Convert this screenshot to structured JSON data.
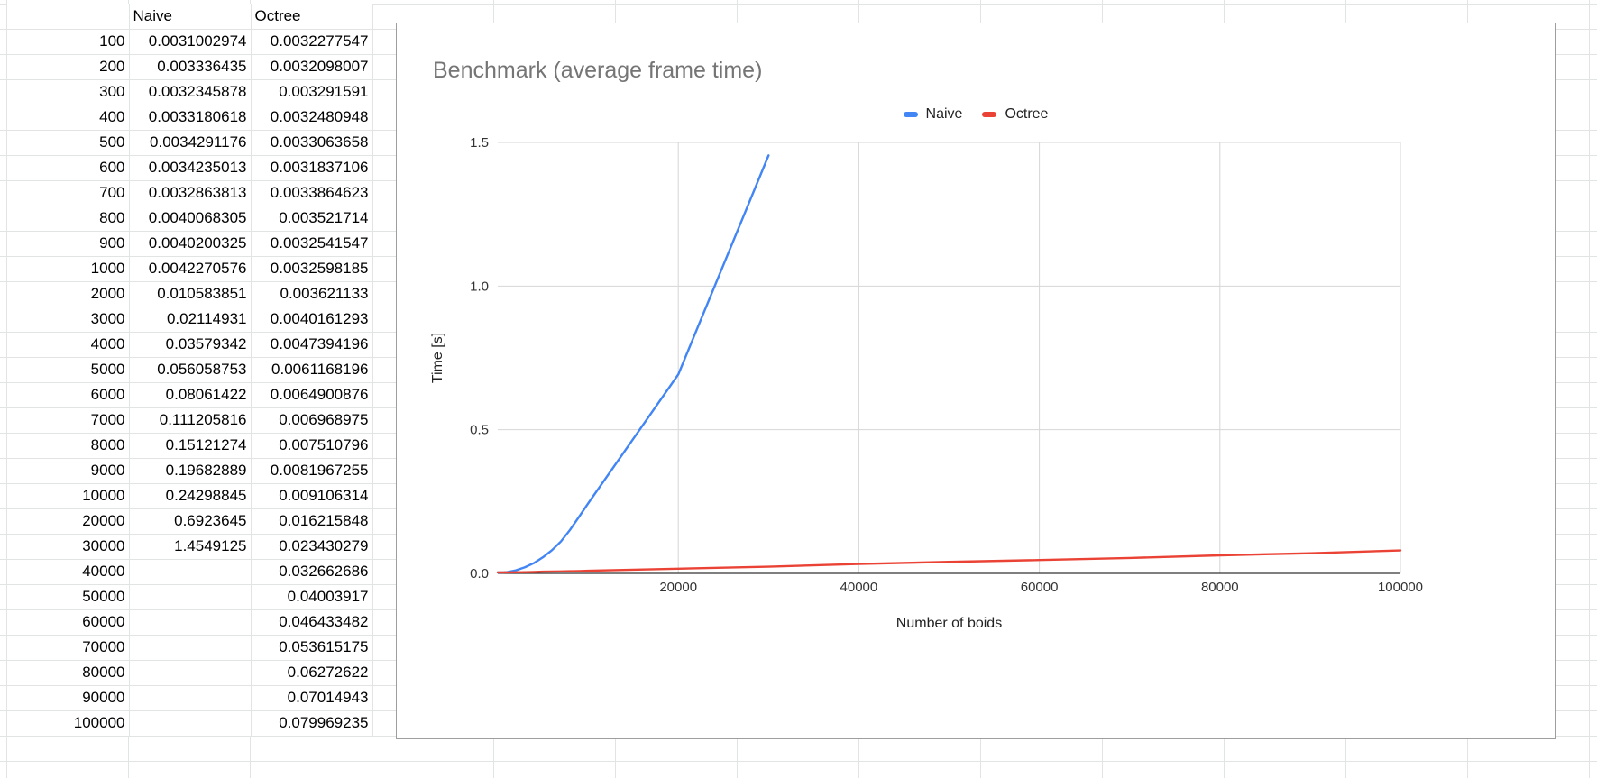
{
  "sheet": {
    "header": [
      "",
      "Naive",
      "Octree"
    ],
    "rows": [
      [
        "100",
        "0.0031002974",
        "0.0032277547"
      ],
      [
        "200",
        "0.003336435",
        "0.0032098007"
      ],
      [
        "300",
        "0.0032345878",
        "0.003291591"
      ],
      [
        "400",
        "0.0033180618",
        "0.0032480948"
      ],
      [
        "500",
        "0.0034291176",
        "0.0033063658"
      ],
      [
        "600",
        "0.0034235013",
        "0.0031837106"
      ],
      [
        "700",
        "0.0032863813",
        "0.0033864623"
      ],
      [
        "800",
        "0.0040068305",
        "0.003521714"
      ],
      [
        "900",
        "0.0040200325",
        "0.0032541547"
      ],
      [
        "1000",
        "0.0042270576",
        "0.0032598185"
      ],
      [
        "2000",
        "0.010583851",
        "0.003621133"
      ],
      [
        "3000",
        "0.02114931",
        "0.0040161293"
      ],
      [
        "4000",
        "0.03579342",
        "0.0047394196"
      ],
      [
        "5000",
        "0.056058753",
        "0.0061168196"
      ],
      [
        "6000",
        "0.08061422",
        "0.0064900876"
      ],
      [
        "7000",
        "0.111205816",
        "0.006968975"
      ],
      [
        "8000",
        "0.15121274",
        "0.007510796"
      ],
      [
        "9000",
        "0.19682889",
        "0.0081967255"
      ],
      [
        "10000",
        "0.24298845",
        "0.009106314"
      ],
      [
        "20000",
        "0.6923645",
        "0.016215848"
      ],
      [
        "30000",
        "1.4549125",
        "0.023430279"
      ],
      [
        "40000",
        "",
        "0.032662686"
      ],
      [
        "50000",
        "",
        "0.04003917"
      ],
      [
        "60000",
        "",
        "0.046433482"
      ],
      [
        "70000",
        "",
        "0.053615175"
      ],
      [
        "80000",
        "",
        "0.06272622"
      ],
      [
        "90000",
        "",
        "0.07014943"
      ],
      [
        "100000",
        "",
        "0.079969235"
      ]
    ]
  },
  "chart_data": {
    "type": "line",
    "title": "Benchmark (average frame time)",
    "xlabel": "Number of boids",
    "ylabel": "Time [s]",
    "xlim": [
      0,
      100000
    ],
    "ylim": [
      0,
      1.5
    ],
    "x_ticks": [
      20000,
      40000,
      60000,
      80000,
      100000
    ],
    "y_ticks": [
      "0.0",
      "0.5",
      "1.0",
      "1.5"
    ],
    "grid": true,
    "legend_position": "top-center",
    "series": [
      {
        "name": "Naive",
        "color": "#4285f4",
        "x": [
          100,
          200,
          300,
          400,
          500,
          600,
          700,
          800,
          900,
          1000,
          2000,
          3000,
          4000,
          5000,
          6000,
          7000,
          8000,
          9000,
          10000,
          20000,
          30000
        ],
        "y": [
          0.0031002974,
          0.003336435,
          0.0032345878,
          0.0033180618,
          0.0034291176,
          0.0034235013,
          0.0032863813,
          0.0040068305,
          0.0040200325,
          0.0042270576,
          0.010583851,
          0.02114931,
          0.03579342,
          0.056058753,
          0.08061422,
          0.111205816,
          0.15121274,
          0.19682889,
          0.24298845,
          0.6923645,
          1.4549125
        ]
      },
      {
        "name": "Octree",
        "color": "#ea4335",
        "x": [
          100,
          200,
          300,
          400,
          500,
          600,
          700,
          800,
          900,
          1000,
          2000,
          3000,
          4000,
          5000,
          6000,
          7000,
          8000,
          9000,
          10000,
          20000,
          30000,
          40000,
          50000,
          60000,
          70000,
          80000,
          90000,
          100000
        ],
        "y": [
          0.0032277547,
          0.0032098007,
          0.003291591,
          0.0032480948,
          0.0033063658,
          0.0031837106,
          0.0033864623,
          0.003521714,
          0.0032541547,
          0.0032598185,
          0.003621133,
          0.0040161293,
          0.0047394196,
          0.0061168196,
          0.0064900876,
          0.006968975,
          0.007510796,
          0.0081967255,
          0.009106314,
          0.016215848,
          0.023430279,
          0.032662686,
          0.04003917,
          0.046433482,
          0.053615175,
          0.06272622,
          0.07014943,
          0.079969235
        ]
      }
    ]
  }
}
